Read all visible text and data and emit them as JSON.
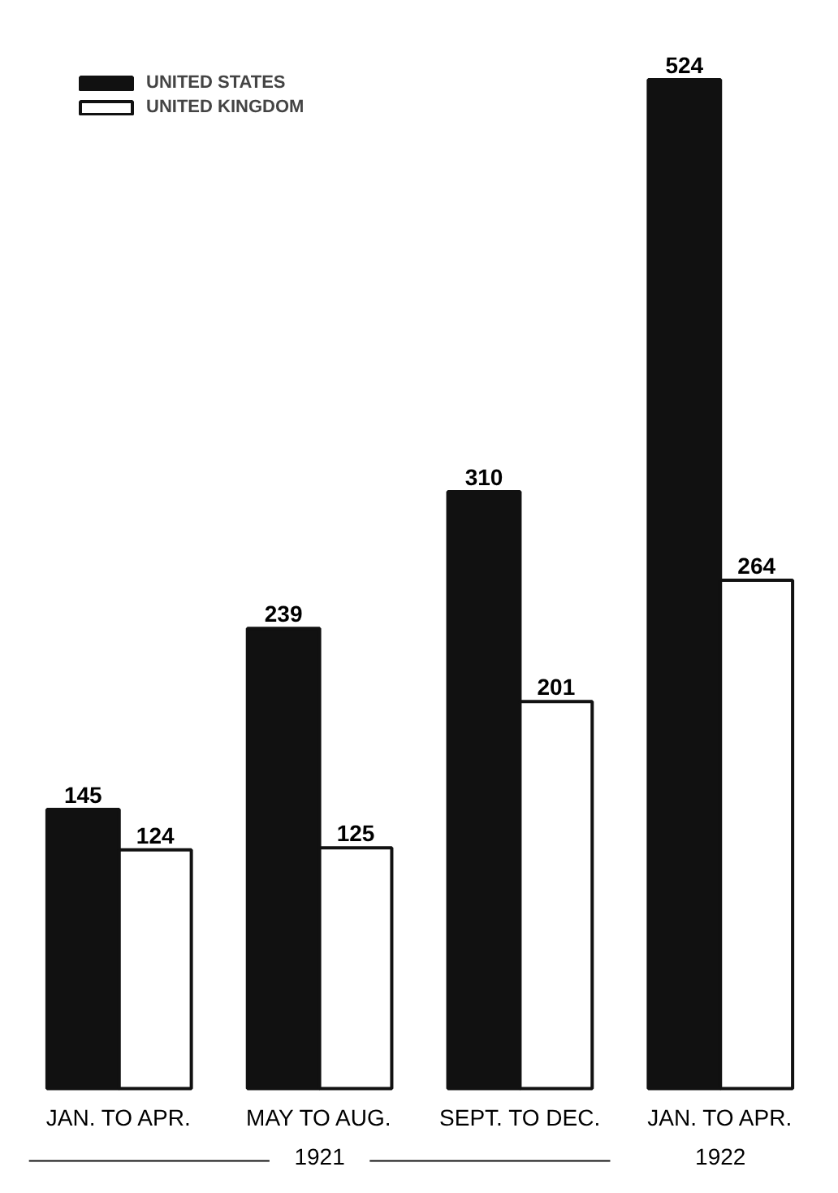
{
  "chart_data": {
    "type": "bar",
    "categories": [
      "JAN. TO APR.",
      "MAY TO AUG.",
      "SEPT. TO DEC.",
      "JAN. TO APR."
    ],
    "series": [
      {
        "name": "UNITED STATES",
        "color": "#111111",
        "values": [
          145,
          239,
          310,
          524
        ]
      },
      {
        "name": "UNITED KINGDOM",
        "color": "#ffffff",
        "values": [
          124,
          125,
          201,
          264
        ]
      }
    ],
    "data_labels": true,
    "legend": "top left",
    "grid": false,
    "annotations": [
      "1921",
      "1922"
    ]
  }
}
